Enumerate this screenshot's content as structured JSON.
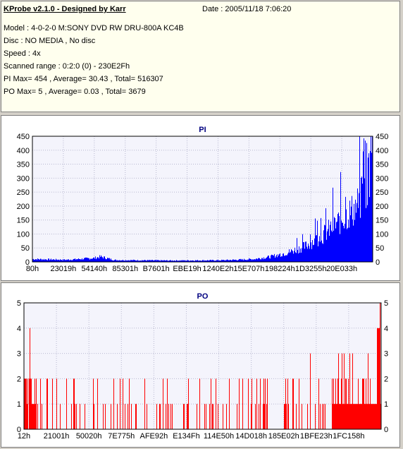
{
  "info": {
    "title": "KProbe v2.1.0 - Designed by Karr",
    "date": "Date : 2005/11/18 7:06:20",
    "lines": [
      "Model : 4-0-2-0 M:SONY    DVD RW DRU-800A  KC4B",
      "Disc : NO MEDIA , No disc",
      "Speed : 4x",
      "Scanned range : 0:2:0 (0) - 230E2Fh",
      "PI Max= 454 , Average= 30.43 , Total= 516307",
      "PO Max= 5 , Average= 0.03 , Total= 3679"
    ]
  },
  "colors": {
    "bar": "#0000ff",
    "bar_po": "#ff0000",
    "plot_bg": "#f4f4fc",
    "grid": "#b8b8d0",
    "title": "#000080"
  },
  "chart_data": [
    {
      "type": "bar",
      "title": "PI",
      "ylim": [
        0,
        450
      ],
      "yticks": [
        0,
        50,
        100,
        150,
        200,
        250,
        300,
        350,
        400,
        450
      ],
      "xticks": [
        "80h",
        "23019h",
        "54140h",
        "85301h",
        "B7601h",
        "EBE19h",
        "1240E2h",
        "15E707h",
        "198224h",
        "1D3255h",
        "20E033h"
      ],
      "grid": true,
      "color": "#0000ff",
      "envelope": [
        [
          0,
          12
        ],
        [
          0.1,
          9
        ],
        [
          0.18,
          16
        ],
        [
          0.2,
          22
        ],
        [
          0.24,
          8
        ],
        [
          0.4,
          6
        ],
        [
          0.55,
          7
        ],
        [
          0.6,
          9
        ],
        [
          0.65,
          12
        ],
        [
          0.7,
          22
        ],
        [
          0.75,
          40
        ],
        [
          0.8,
          65
        ],
        [
          0.85,
          110
        ],
        [
          0.9,
          170
        ],
        [
          0.95,
          230
        ],
        [
          0.98,
          300
        ],
        [
          1.0,
          454
        ]
      ]
    },
    {
      "type": "bar",
      "title": "PO",
      "ylim": [
        0,
        5
      ],
      "yticks": [
        0,
        1,
        2,
        3,
        4,
        5
      ],
      "xticks": [
        "12h",
        "21001h",
        "50020h",
        "7E775h",
        "AFE92h",
        "E134Fh",
        "114E50h",
        "14D018h",
        "185E02h",
        "1BFE23h",
        "1FC158h"
      ],
      "grid": true,
      "color": "#ff0000",
      "max": 5
    }
  ]
}
